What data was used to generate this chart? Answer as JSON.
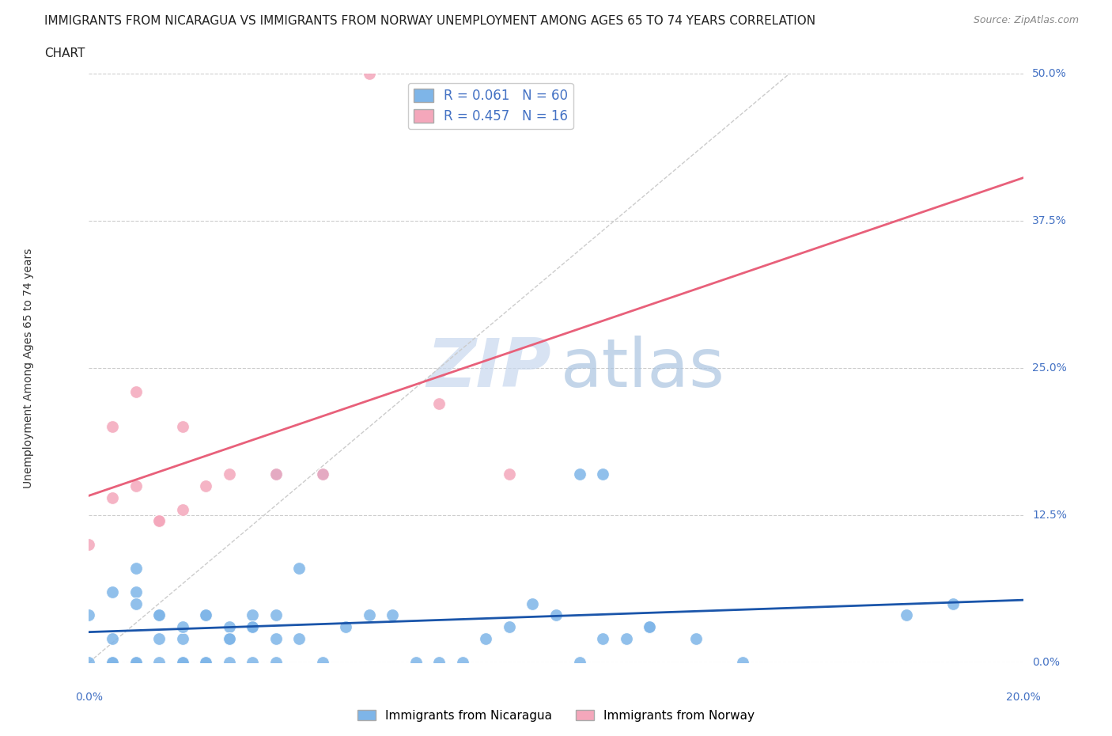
{
  "title_line1": "IMMIGRANTS FROM NICARAGUA VS IMMIGRANTS FROM NORWAY UNEMPLOYMENT AMONG AGES 65 TO 74 YEARS CORRELATION",
  "title_line2": "CHART",
  "source": "Source: ZipAtlas.com",
  "ylabel": "Unemployment Among Ages 65 to 74 years",
  "xlim": [
    0.0,
    0.2
  ],
  "ylim": [
    0.0,
    0.5
  ],
  "xticks": [
    0.0,
    0.05,
    0.1,
    0.15,
    0.2
  ],
  "xtick_labels": [
    "0.0%",
    "",
    "",
    "",
    "20.0%"
  ],
  "ytick_labels_right": [
    "0.0%",
    "12.5%",
    "25.0%",
    "37.5%",
    "50.0%"
  ],
  "yticks": [
    0.0,
    0.125,
    0.25,
    0.375,
    0.5
  ],
  "color_nicaragua": "#7EB5E8",
  "color_norway": "#F4A7BB",
  "R_nicaragua": 0.061,
  "N_nicaragua": 60,
  "R_norway": 0.457,
  "N_norway": 16,
  "legend_label_nicaragua": "Immigrants from Nicaragua",
  "legend_label_norway": "Immigrants from Norway",
  "nicaragua_x": [
    0.0,
    0.01,
    0.005,
    0.015,
    0.02,
    0.025,
    0.01,
    0.03,
    0.035,
    0.04,
    0.005,
    0.01,
    0.015,
    0.02,
    0.025,
    0.03,
    0.035,
    0.04,
    0.045,
    0.05,
    0.005,
    0.01,
    0.015,
    0.02,
    0.025,
    0.03,
    0.035,
    0.04,
    0.05,
    0.055,
    0.06,
    0.065,
    0.07,
    0.075,
    0.08,
    0.085,
    0.09,
    0.095,
    0.1,
    0.105,
    0.0,
    0.005,
    0.01,
    0.015,
    0.02,
    0.025,
    0.03,
    0.035,
    0.04,
    0.045,
    0.11,
    0.12,
    0.13,
    0.14,
    0.105,
    0.11,
    0.115,
    0.12,
    0.175,
    0.185
  ],
  "nicaragua_y": [
    0.04,
    0.06,
    0.02,
    0.04,
    0.02,
    0.04,
    0.08,
    0.02,
    0.03,
    0.02,
    0.0,
    0.0,
    0.0,
    0.0,
    0.0,
    0.0,
    0.0,
    0.0,
    0.02,
    0.0,
    0.06,
    0.05,
    0.04,
    0.03,
    0.04,
    0.03,
    0.04,
    0.16,
    0.16,
    0.03,
    0.04,
    0.04,
    0.0,
    0.0,
    0.0,
    0.02,
    0.03,
    0.05,
    0.04,
    0.0,
    0.0,
    0.0,
    0.0,
    0.02,
    0.0,
    0.0,
    0.02,
    0.03,
    0.04,
    0.08,
    0.02,
    0.03,
    0.02,
    0.0,
    0.16,
    0.16,
    0.02,
    0.03,
    0.04,
    0.05
  ],
  "norway_x": [
    0.0,
    0.005,
    0.01,
    0.015,
    0.02,
    0.005,
    0.01,
    0.015,
    0.02,
    0.025,
    0.03,
    0.04,
    0.05,
    0.06,
    0.075,
    0.09
  ],
  "norway_y": [
    0.1,
    0.14,
    0.15,
    0.12,
    0.2,
    0.2,
    0.23,
    0.12,
    0.13,
    0.15,
    0.16,
    0.16,
    0.16,
    0.5,
    0.22,
    0.16
  ]
}
